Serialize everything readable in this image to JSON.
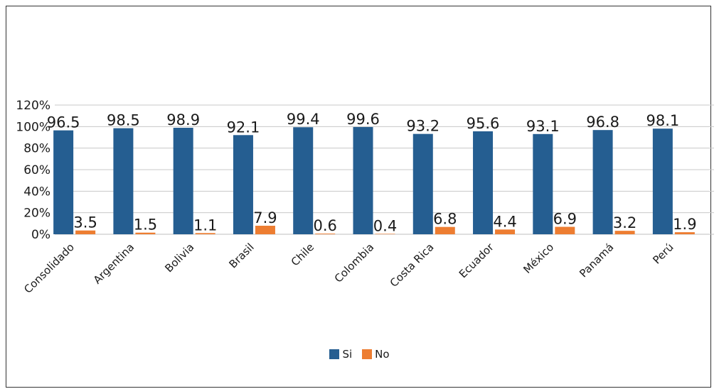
{
  "chart_data": {
    "type": "bar",
    "categories": [
      "Consolidado",
      "Argentina",
      "Bolivia",
      "Brasil",
      "Chile",
      "Colombia",
      "Costa Rica",
      "Ecuador",
      "México",
      "Panamá",
      "Perú"
    ],
    "series": [
      {
        "name": "Si",
        "color": "#255e91",
        "values": [
          96.5,
          98.5,
          98.9,
          92.1,
          99.4,
          99.6,
          93.2,
          95.6,
          93.1,
          96.8,
          98.1
        ]
      },
      {
        "name": "No",
        "color": "#ed7d31",
        "values": [
          3.5,
          1.5,
          1.1,
          7.9,
          0.6,
          0.4,
          6.8,
          4.4,
          6.9,
          3.2,
          1.9
        ]
      }
    ],
    "yticks": [
      "0%",
      "20%",
      "40%",
      "60%",
      "80%",
      "100%",
      "120%"
    ],
    "ylim": [
      0,
      120
    ],
    "grid": true,
    "legend_position": "bottom"
  }
}
